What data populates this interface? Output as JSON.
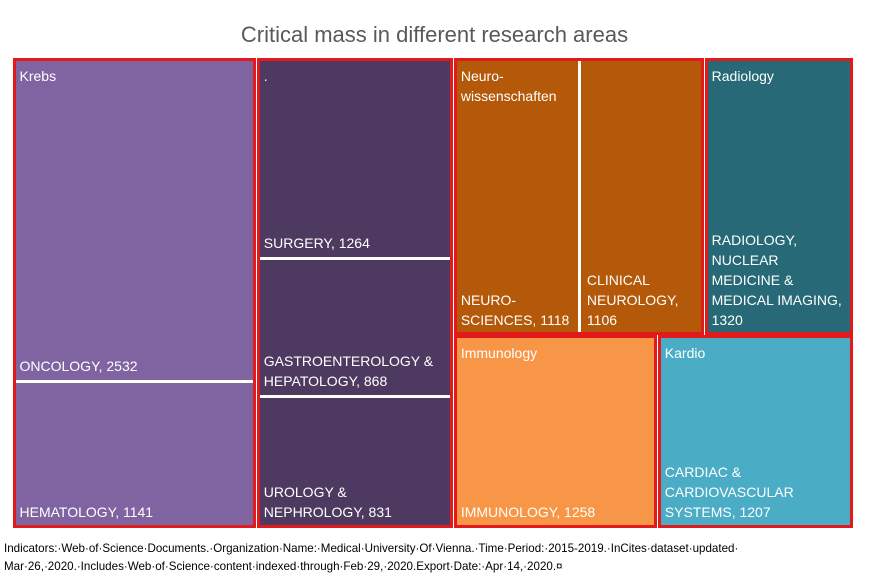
{
  "chart_data": {
    "type": "treemap",
    "title": "Critical mass in different research areas",
    "groups": [
      {
        "name": "Krebs",
        "color": "#8064a2",
        "items": [
          {
            "label": "ONCOLOGY, 2532",
            "value": 2532
          },
          {
            "label": "HEMATOLOGY, 1141",
            "value": 1141
          }
        ]
      },
      {
        "name": ".",
        "color": "#4e3a61",
        "items": [
          {
            "label": "SURGERY, 1264",
            "value": 1264
          },
          {
            "label": "GASTROENTEROLOGY & HEPATOLOGY, 868",
            "value": 868
          },
          {
            "label": "UROLOGY & NEPHROLOGY, 831",
            "value": 831
          }
        ]
      },
      {
        "name": "Neuro-wissenschaften",
        "color": "#b4580a",
        "items": [
          {
            "label": "NEURO-SCIENCES, 1118",
            "value": 1118
          },
          {
            "label": "CLINICAL NEUROLOGY, 1106",
            "value": 1106
          }
        ]
      },
      {
        "name": "Radiology",
        "color": "#276977",
        "items": [
          {
            "label": "RADIOLOGY, NUCLEAR MEDICINE & MEDICAL IMAGING, 1320",
            "value": 1320
          }
        ]
      },
      {
        "name": "Immunology",
        "color": "#f79646",
        "items": [
          {
            "label": "IMMUNOLOGY, 1258",
            "value": 1258
          }
        ]
      },
      {
        "name": "Kardio",
        "color": "#4bacc6",
        "items": [
          {
            "label": "CARDIAC & CARDIOVASCULAR SYSTEMS, 1207",
            "value": 1207
          }
        ]
      }
    ],
    "footnote": [
      "Indicators:·Web·of·Science·Documents.·Organization·Name:·Medical·University·Of·Vienna.·Time·Period:·2015-2019.·InCites·dataset·updated·",
      "Mar·26,·2020.·Includes·Web·of·Science·content·indexed·through·Feb·29,·2020.Export·Date:·Apr·14,·2020.¤"
    ]
  }
}
